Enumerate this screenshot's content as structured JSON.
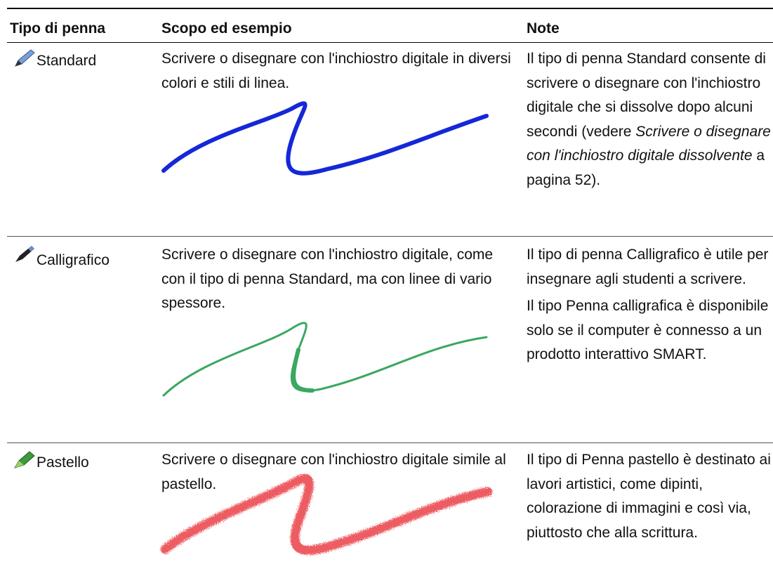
{
  "table": {
    "header": [
      "Tipo di penna",
      "Scopo ed esempio",
      "Note"
    ],
    "rows": [
      {
        "pen": "Standard",
        "purpose": "Scrivere o disegnare con l'inchiostro digitale in diversi colori e stili di linea.",
        "notes": [
          [
            {
              "text": "Il tipo di penna Standard consente di scrivere o disegnare con l'inchiostro digitale che si dissolve dopo alcuni secondi (vedere ",
              "italic": false
            },
            {
              "text": "Scrivere o disegnare con l'inchiostro digitale dissolvente",
              "italic": true
            },
            {
              "text": " a pagina 52).",
              "italic": false
            }
          ]
        ]
      },
      {
        "pen": "Calligrafico",
        "purpose": "Scrivere o disegnare con l'inchiostro digitale, come con il tipo di penna Standard, ma con linee di vario spessore.",
        "notes": [
          [
            {
              "text": "Il tipo di penna Calligrafico è utile per insegnare agli studenti a scrivere.",
              "italic": false
            }
          ],
          [
            {
              "text": "Il tipo Penna calligrafica è disponibile solo se il computer è connesso a un prodotto interattivo SMART.",
              "italic": false
            }
          ]
        ]
      },
      {
        "pen": "Pastello",
        "purpose": "Scrivere o disegnare con l'inchiostro digitale simile al pastello.",
        "notes": [
          [
            {
              "text": "Il tipo di Penna pastello è destinato ai lavori artistici, come dipinti, colorazione di immagini e così via, piuttosto che alla scrittura.",
              "italic": false
            }
          ]
        ]
      }
    ]
  }
}
